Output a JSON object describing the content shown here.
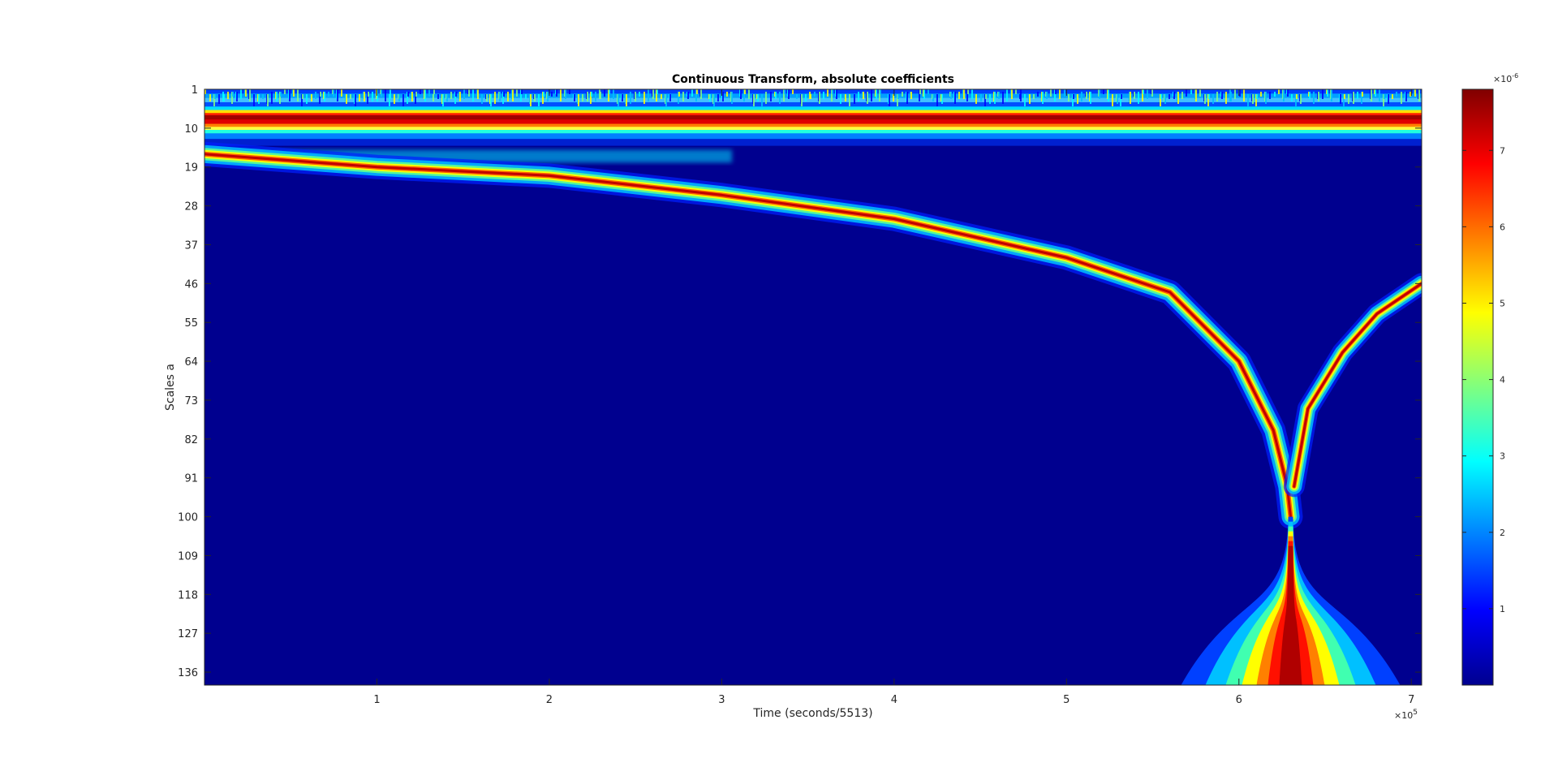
{
  "chart_data": {
    "type": "heatmap",
    "title": "Continuous Transform, absolute coefficients",
    "xlabel": "Time (seconds/5513)",
    "ylabel": "Scales a",
    "x_exponent_label": "×10",
    "x_exponent_power": "5",
    "xlim": [
      0,
      706000
    ],
    "ylim": [
      1,
      139
    ],
    "y_reversed": true,
    "x_ticks": [
      "1",
      "2",
      "3",
      "4",
      "5",
      "6",
      "7"
    ],
    "x_tick_values": [
      1,
      2,
      3,
      4,
      5,
      6,
      7
    ],
    "y_ticks": [
      "1",
      "10",
      "19",
      "28",
      "37",
      "46",
      "55",
      "64",
      "73",
      "82",
      "91",
      "100",
      "109",
      "118",
      "127",
      "136"
    ],
    "y_tick_values": [
      1,
      10,
      19,
      28,
      37,
      46,
      55,
      64,
      73,
      82,
      91,
      100,
      109,
      118,
      127,
      136
    ],
    "colormap": "jet",
    "colorbar": {
      "exponent_label": "×10",
      "exponent_power": "-6",
      "ticks": [
        "1",
        "2",
        "3",
        "4",
        "5",
        "6",
        "7"
      ],
      "tick_values": [
        1,
        2,
        3,
        4,
        5,
        6,
        7
      ],
      "range": [
        0,
        7.8
      ]
    },
    "features": [
      {
        "name": "high-frequency band",
        "scale_range": [
          1,
          12
        ],
        "peak_scale": 7,
        "time_range": [
          0,
          706000
        ],
        "peak_value": 7.8
      },
      {
        "name": "descending chirp ridge",
        "points": [
          [
            0,
            16
          ],
          [
            100000,
            19
          ],
          [
            200000,
            21
          ],
          [
            300000,
            25.5
          ],
          [
            400000,
            31
          ],
          [
            500000,
            40
          ],
          [
            560000,
            48
          ],
          [
            600000,
            64
          ],
          [
            620000,
            80
          ],
          [
            628000,
            93
          ],
          [
            630000,
            100
          ]
        ],
        "peak_value": 7.5
      },
      {
        "name": "ascending chirp ridge",
        "points": [
          [
            632000,
            93
          ],
          [
            640000,
            75
          ],
          [
            660000,
            62
          ],
          [
            680000,
            53
          ],
          [
            706000,
            46
          ]
        ],
        "peak_value": 7.2
      },
      {
        "name": "large-scale event",
        "center_time": 630000,
        "scale_range": [
          100,
          139
        ],
        "peak_value": 7.8
      }
    ]
  }
}
